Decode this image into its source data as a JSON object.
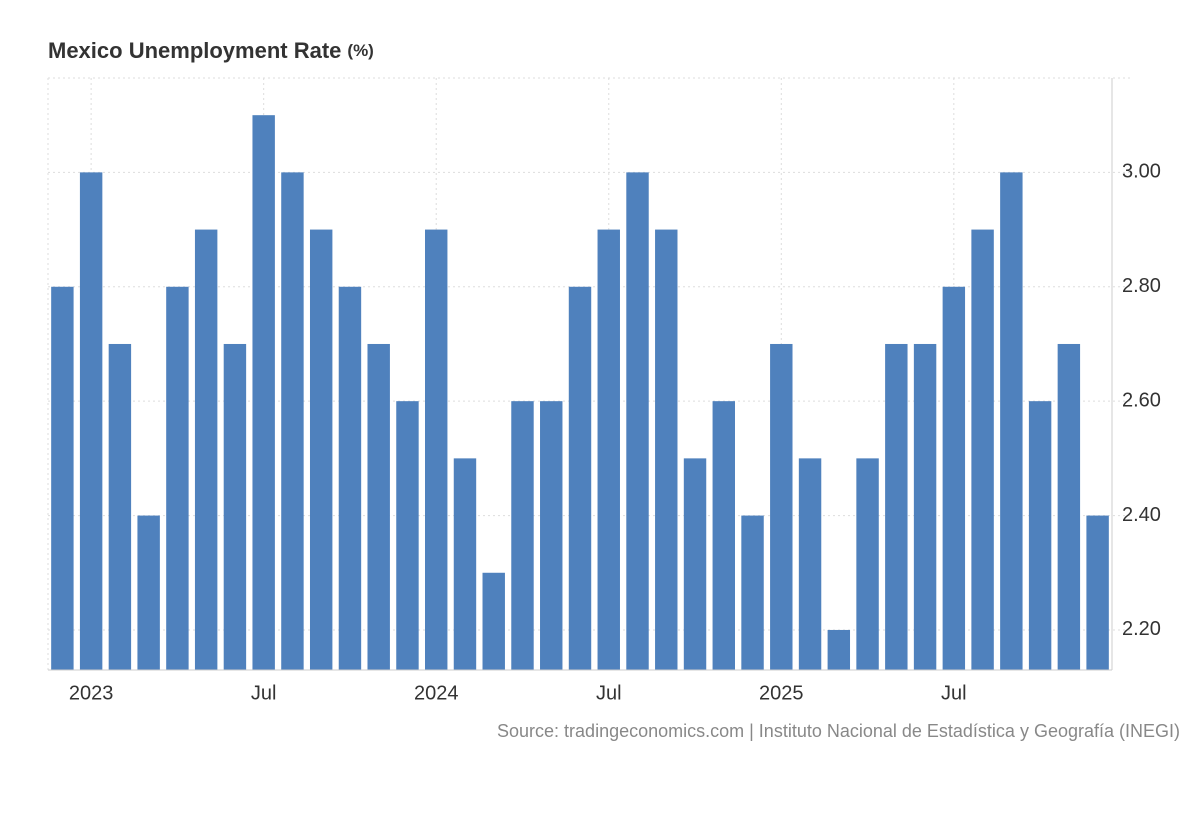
{
  "chart_data": {
    "type": "bar",
    "title": "Mexico Unemployment Rate",
    "title_unit": "(%)",
    "source": "Source: tradingeconomics.com | Instituto Nacional de Estadística y Geografía (INEGI)",
    "categories": [
      null,
      "2023",
      null,
      null,
      null,
      null,
      null,
      "Jul",
      null,
      null,
      null,
      null,
      null,
      "2024",
      null,
      null,
      null,
      null,
      null,
      "Jul",
      null,
      null,
      null,
      null,
      null,
      "2025",
      null,
      null,
      null,
      null,
      null,
      "Jul",
      null,
      null,
      null,
      null,
      null
    ],
    "values": [
      2.8,
      3.0,
      2.7,
      2.4,
      2.8,
      2.9,
      2.7,
      3.1,
      3.0,
      2.9,
      2.8,
      2.7,
      2.6,
      2.9,
      2.5,
      2.3,
      2.6,
      2.6,
      2.8,
      2.9,
      3.0,
      2.9,
      2.5,
      2.6,
      2.4,
      2.7,
      2.5,
      2.2,
      2.5,
      2.7,
      2.7,
      2.8,
      2.9,
      3.0,
      2.6,
      2.7,
      2.4
    ],
    "color": "#4f81bd",
    "ylim": [
      2.13,
      3.165
    ],
    "yticks": [
      {
        "value": 2.2,
        "label": "2.20"
      },
      {
        "value": 2.4,
        "label": "2.40"
      },
      {
        "value": 2.6,
        "label": "2.60"
      },
      {
        "value": 2.8,
        "label": "2.80"
      },
      {
        "value": 3.0,
        "label": "3.00"
      }
    ],
    "grid": true
  }
}
